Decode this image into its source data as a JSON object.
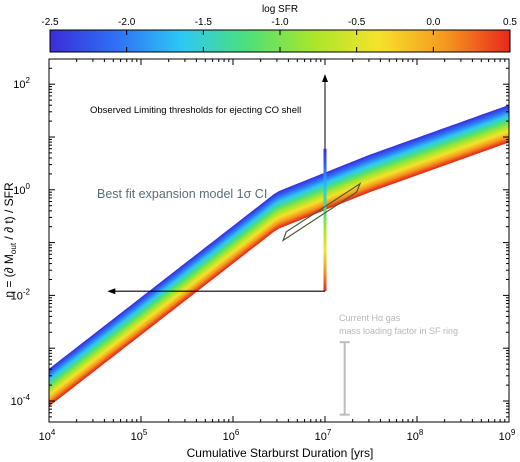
{
  "chart_data": {
    "type": "area",
    "title": "",
    "xlabel": "Cumulative Starburst Duration  [yrs]",
    "ylabel": "η = (∂ M_out / ∂ t) / SFR",
    "x_scale": "log",
    "y_scale": "log",
    "xlim": [
      10000.0,
      1000000000.0
    ],
    "ylim": [
      4e-05,
      300
    ],
    "grid": false,
    "x_ticks": [
      {
        "value": 10000.0,
        "base": "10",
        "exp": "4"
      },
      {
        "value": 100000.0,
        "base": "10",
        "exp": "5"
      },
      {
        "value": 1000000.0,
        "base": "10",
        "exp": "6"
      },
      {
        "value": 10000000.0,
        "base": "10",
        "exp": "7"
      },
      {
        "value": 100000000.0,
        "base": "10",
        "exp": "8"
      },
      {
        "value": 1000000000.0,
        "base": "10",
        "exp": "9"
      }
    ],
    "y_ticks": [
      {
        "value": 0.0001,
        "base": "10",
        "exp": "-4"
      },
      {
        "value": 0.01,
        "base": "10",
        "exp": "-2"
      },
      {
        "value": 1,
        "base": "10",
        "exp": "0"
      },
      {
        "value": 100,
        "base": "10",
        "exp": "2"
      }
    ],
    "colorbar": {
      "label": "log SFR",
      "range": [
        -2.5,
        0.5
      ],
      "ticks": [
        "-2.5",
        "-2.0",
        "-1.5",
        "-1.0",
        "-0.5",
        "0.0",
        "0.5"
      ],
      "colors": [
        "#3a2dd8",
        "#2f6ff5",
        "#2dc8f5",
        "#4ce07a",
        "#a8e62b",
        "#f5e22b",
        "#f59a1f",
        "#e8281a"
      ]
    },
    "band": {
      "description_label": "",
      "upper_curve": [
        [
          10000.0,
          0.0004
        ],
        [
          3000000.0,
          0.9
        ],
        [
          30000000.0,
          4.5
        ],
        [
          1000000000.0,
          40
        ]
      ],
      "lower_curve": [
        [
          10000.0,
          8e-05
        ],
        [
          3000000.0,
          0.18
        ],
        [
          30000000.0,
          0.9
        ],
        [
          1000000000.0,
          8
        ]
      ],
      "log_sfr_upper": -2.5,
      "log_sfr_lower": 0.5
    },
    "annotations": [
      {
        "text": "Observed Limiting thresholds for ejecting CO shell",
        "x": 11000.0,
        "y": 40,
        "color": "#000000"
      },
      {
        "text": "Best fit expansion model 1σ CI",
        "x": 60000.0,
        "y": 0.65,
        "color": "#5a6e7a"
      },
      {
        "text": "Current Hα gas",
        "x": 30000000.0,
        "y": 0.0015,
        "color": "#b8b8b8"
      },
      {
        "text": "mass loading factor in SF ring",
        "x": 30000000.0,
        "y": 0.00065,
        "color": "#b8b8b8"
      }
    ],
    "threshold_lines": {
      "vertical": {
        "x": 10000000.0,
        "y_from": 0.012,
        "y_to": 120,
        "arrow": "up"
      },
      "horizontal": {
        "y": 0.012,
        "x_from": 10000000.0,
        "x_to": 50000.0,
        "arrow": "left"
      },
      "vertical_color_range": [
        -2.5,
        0.5
      ]
    },
    "best_fit_box": {
      "corners": [
        [
          3500000.0,
          0.11
        ],
        [
          22000000.0,
          0.9
        ],
        [
          24000000.0,
          1.3
        ],
        [
          3800000.0,
          0.16
        ]
      ],
      "stroke": "#4a5a3a"
    },
    "halpha_range": {
      "x": 20000000.0,
      "y_low": 5.5e-05,
      "y_high": 0.0013,
      "color": "#bdbdbd"
    }
  }
}
